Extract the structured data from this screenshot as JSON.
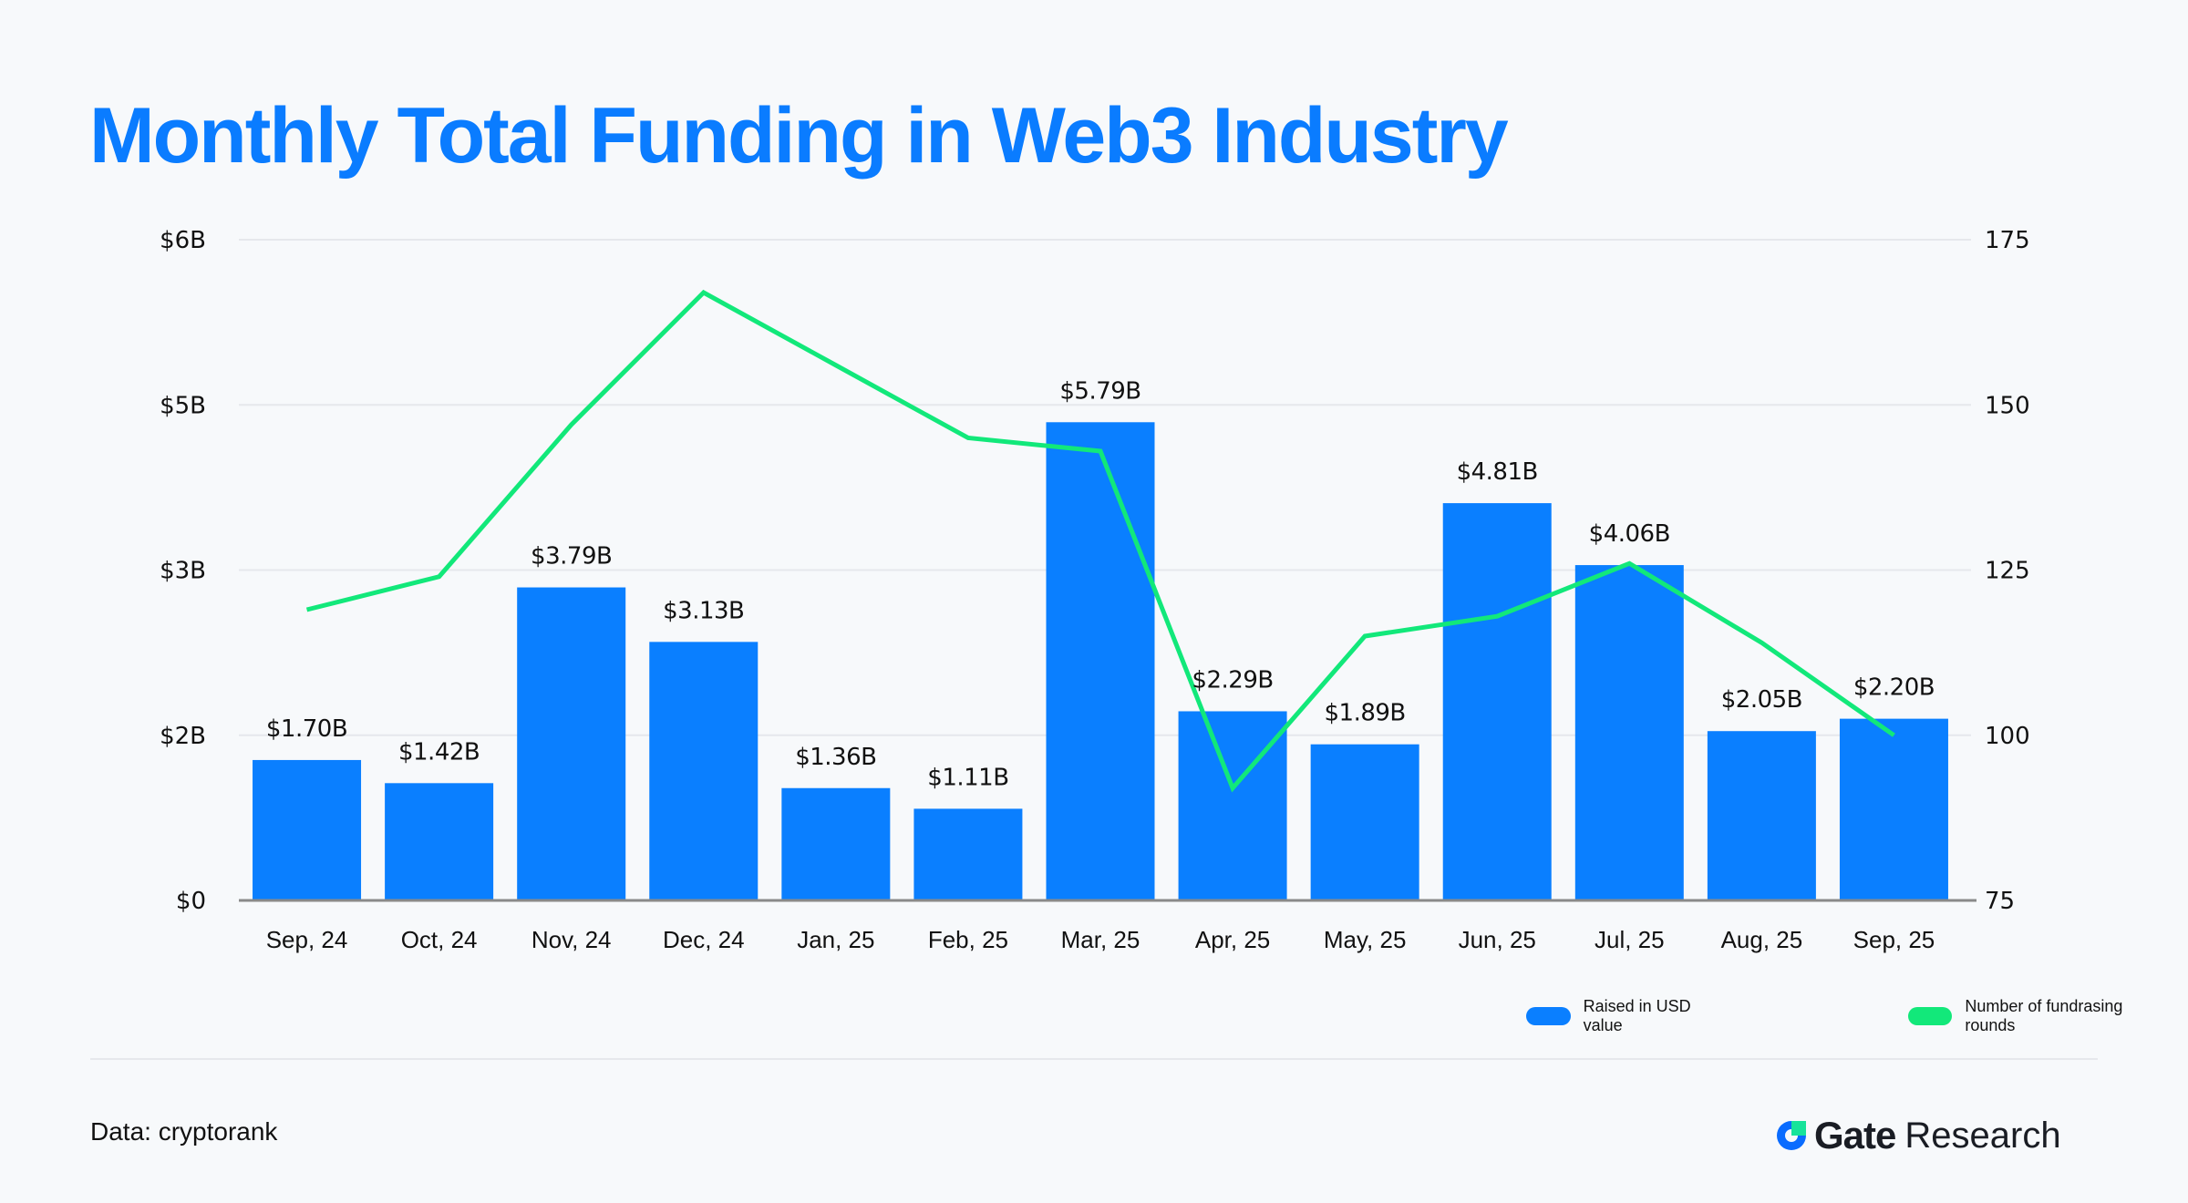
{
  "title": "Monthly Total Funding in Web3 Industry",
  "colors": {
    "title": "#0a7cff",
    "bar": "#0a7fff",
    "line": "#12e87a",
    "grid": "#e6e8ec",
    "baseline": "#8a8a8a"
  },
  "legend": {
    "bars_label": "Raised in USD value",
    "line_label": "Number of fundrasing rounds"
  },
  "footer": {
    "source": "Data: cryptorank",
    "brand_name": "Gate",
    "brand_suffix": "Research",
    "brand_icon": "gate-logo-icon"
  },
  "chart_data": {
    "type": "bar",
    "title": "Monthly Total Funding in Web3 Industry",
    "xlabel": "",
    "ylabel": "",
    "y2label": "",
    "categories": [
      "Sep, 24",
      "Oct, 24",
      "Nov, 24",
      "Dec, 24",
      "Jan, 25",
      "Feb, 25",
      "Mar, 25",
      "Apr, 25",
      "May, 25",
      "Jun, 25",
      "Jul, 25",
      "Aug, 25",
      "Sep, 25"
    ],
    "series": [
      {
        "name": "Raised in USD value",
        "type": "bar",
        "axis": "left",
        "unit": "USD billions",
        "values": [
          1.7,
          1.42,
          3.79,
          3.13,
          1.36,
          1.11,
          5.79,
          2.29,
          1.89,
          4.81,
          4.06,
          2.05,
          2.2
        ],
        "labels": [
          "$1.70B",
          "$1.42B",
          "$3.79B",
          "$3.13B",
          "$1.36B",
          "$1.11B",
          "$5.79B",
          "$2.29B",
          "$1.89B",
          "$4.81B",
          "$4.06B",
          "$2.05B",
          "$2.20B"
        ]
      },
      {
        "name": "Number of fundrasing rounds",
        "type": "line",
        "axis": "right",
        "values": [
          119,
          124,
          147,
          167,
          156,
          145,
          143,
          92,
          115,
          118,
          126,
          114,
          100
        ]
      }
    ],
    "ylim": [
      0,
      8
    ],
    "y_tick_labels": [
      "$0",
      "$2B",
      "$3B",
      "$5B",
      "$6B"
    ],
    "y2lim": [
      75,
      175
    ],
    "y2_ticks": [
      75,
      100,
      125,
      150,
      175
    ],
    "grid": true,
    "legend_position": "bottom-right"
  }
}
